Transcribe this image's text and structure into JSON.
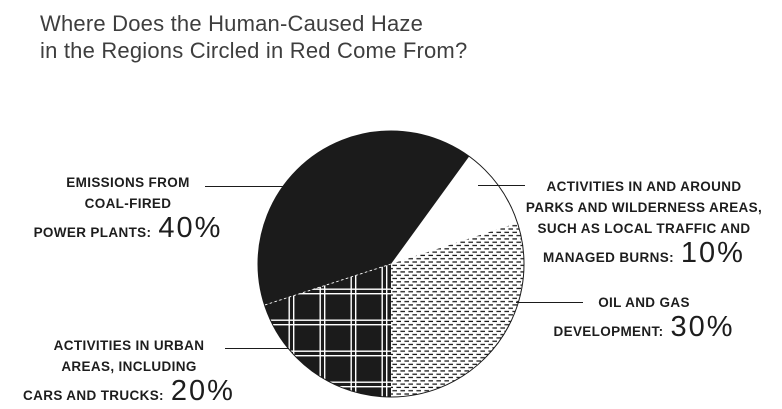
{
  "title": {
    "line1": "Where Does the Human-Caused Haze",
    "line2": "in the Regions Circled in Red Come From?"
  },
  "labels": {
    "coal": {
      "line1": "EMISSIONS FROM",
      "line2": "COAL-FIRED",
      "line3": "POWER PLANTS:",
      "value": "40%"
    },
    "parks": {
      "line1": "ACTIVITIES IN AND AROUND",
      "line2": "PARKS AND WILDERNESS AREAS,",
      "line3": "SUCH AS LOCAL TRAFFIC AND",
      "line4": "MANAGED BURNS:",
      "value": "10%"
    },
    "oil": {
      "line1": "OIL AND GAS",
      "line2": "DEVELOPMENT:",
      "value": "30%"
    },
    "urban": {
      "line1": "ACTIVITIES IN URBAN",
      "line2": "AREAS, INCLUDING",
      "line3": "CARS AND TRUCKS:",
      "value": "20%"
    }
  },
  "chart_data": {
    "type": "pie",
    "title": "Where Does the Human-Caused Haze in the Regions Circled in Red Come From?",
    "slices": [
      {
        "id": "coal",
        "label": "Emissions from coal-fired power plants",
        "value": 40,
        "pattern": "solid-black"
      },
      {
        "id": "parks",
        "label": "Activities in and around parks and wilderness areas, such as local traffic and managed burns",
        "value": 10,
        "pattern": "white"
      },
      {
        "id": "oil",
        "label": "Oil and gas development",
        "value": 30,
        "pattern": "dash-stipple"
      },
      {
        "id": "urban",
        "label": "Activities in urban areas, including cars and trucks",
        "value": 20,
        "pattern": "plaid"
      }
    ],
    "start_angle_deg": -54,
    "direction": "clockwise",
    "draw_order": [
      "parks",
      "oil",
      "urban",
      "coal"
    ],
    "legend_position": "callout-labels",
    "colors": {
      "ink": "#1b1b1b",
      "background": "#ffffff"
    }
  }
}
